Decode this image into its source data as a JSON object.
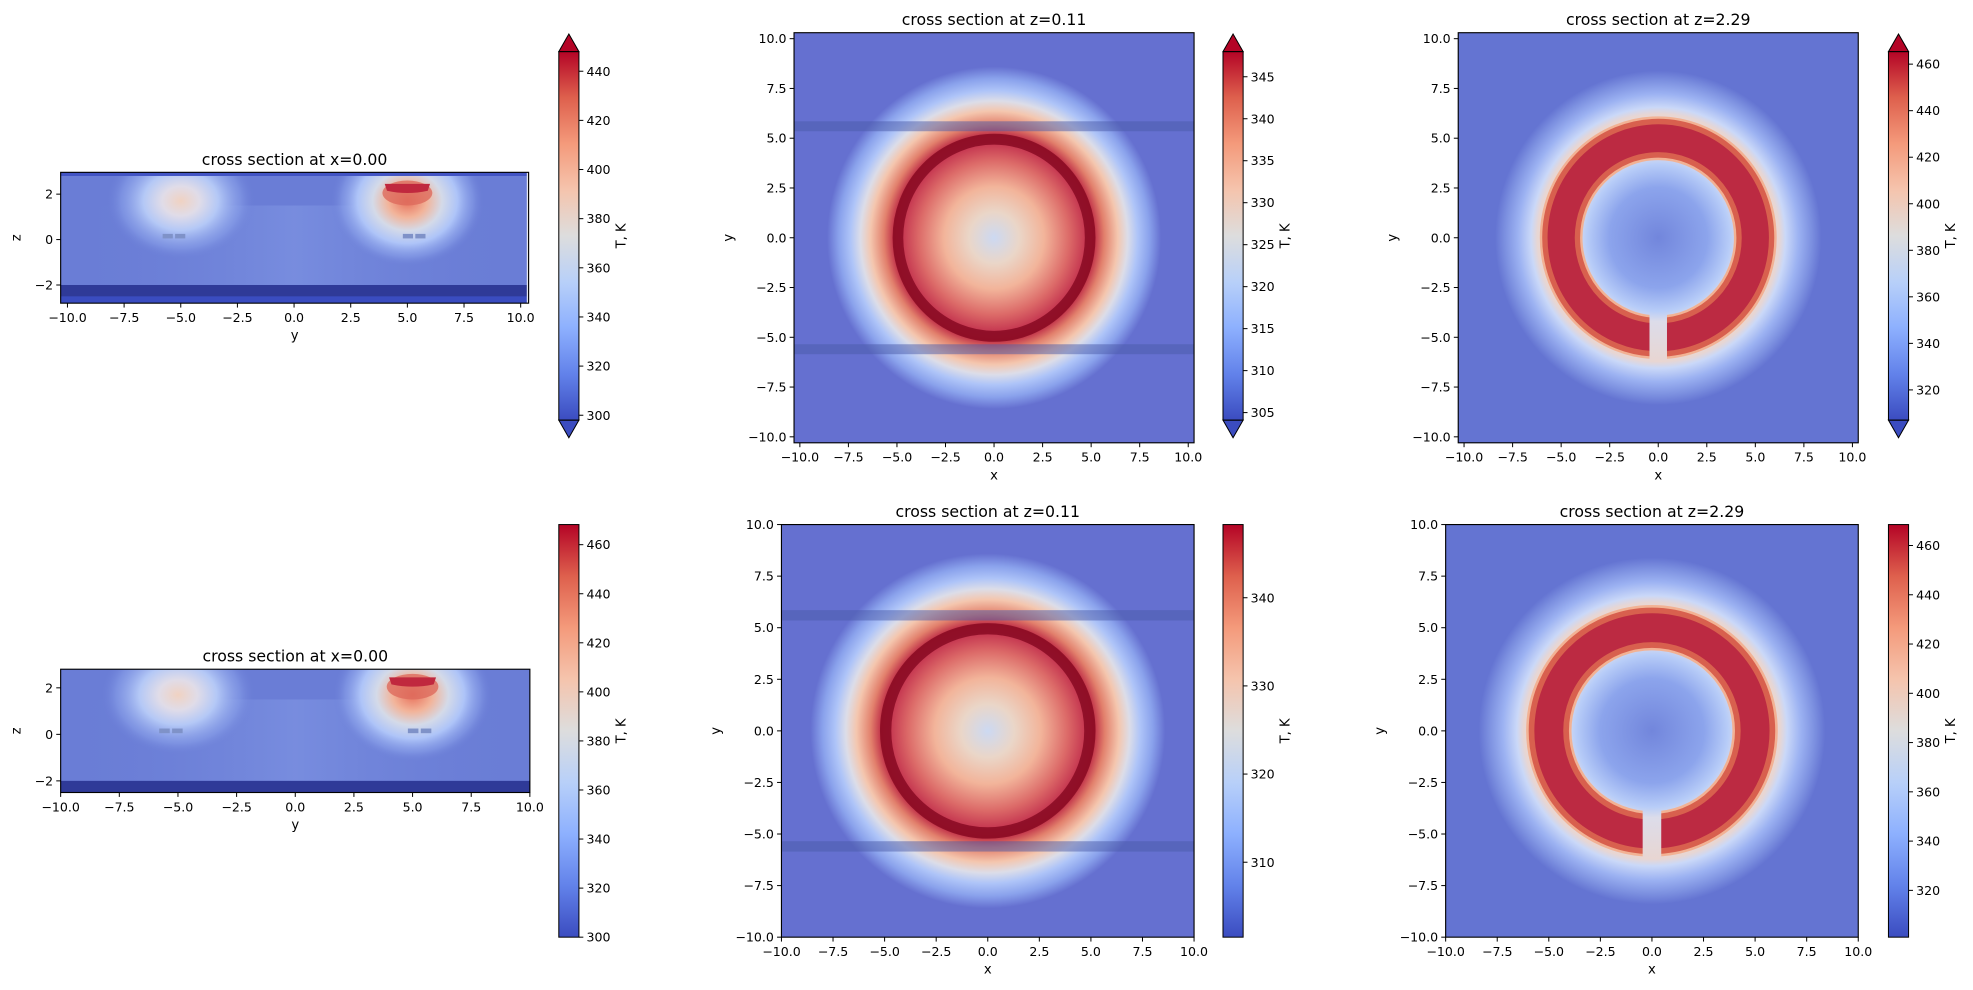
{
  "chart_data": [
    {
      "type": "heatmap",
      "title": "cross section at x=0.00",
      "xlabel": "y",
      "ylabel": "z",
      "xlim": [
        -10.3,
        10.35
      ],
      "ylim": [
        -2.8,
        2.96
      ],
      "xticks": [
        -10.0,
        -7.5,
        -5.0,
        -2.5,
        0.0,
        2.5,
        5.0,
        7.5,
        10.0
      ],
      "yticks": [
        -2,
        0,
        2
      ],
      "colorbar": {
        "label": "T, K",
        "range": [
          298,
          448
        ],
        "ticks": [
          300,
          320,
          340,
          360,
          380,
          400,
          420,
          440
        ],
        "extend": "both"
      }
    },
    {
      "type": "heatmap",
      "title": "cross section at z=0.11",
      "xlabel": "x",
      "ylabel": "y",
      "xlim": [
        -10.3,
        10.3
      ],
      "ylim": [
        -10.3,
        10.3
      ],
      "xticks": [
        -10.0,
        -7.5,
        -5.0,
        -2.5,
        0.0,
        2.5,
        5.0,
        7.5,
        10.0
      ],
      "yticks": [
        -10.0,
        -7.5,
        -5.0,
        -2.5,
        0.0,
        2.5,
        5.0,
        7.5,
        10.0
      ],
      "colorbar": {
        "label": "T, K",
        "range": [
          304.1,
          348
        ],
        "ticks": [
          305,
          310,
          315,
          320,
          325,
          330,
          335,
          340,
          345
        ],
        "extend": "both"
      }
    },
    {
      "type": "heatmap",
      "title": "cross section at z=2.29",
      "xlabel": "x",
      "ylabel": "y",
      "xlim": [
        -10.3,
        10.3
      ],
      "ylim": [
        -10.3,
        10.3
      ],
      "xticks": [
        -10.0,
        -7.5,
        -5.0,
        -2.5,
        0.0,
        2.5,
        5.0,
        7.5,
        10.0
      ],
      "yticks": [
        -10.0,
        -7.5,
        -5.0,
        -2.5,
        0.0,
        2.5,
        5.0,
        7.5,
        10.0
      ],
      "colorbar": {
        "label": "T, K",
        "range": [
          307,
          465.4
        ],
        "ticks": [
          320,
          340,
          360,
          380,
          400,
          420,
          440,
          460
        ],
        "extend": "both"
      }
    },
    {
      "type": "heatmap",
      "title": "cross section at x=0.00",
      "xlabel": "y",
      "ylabel": "z",
      "xlim": [
        -10,
        10
      ],
      "ylim": [
        -2.5,
        2.8
      ],
      "xticks": [
        -10.0,
        -7.5,
        -5.0,
        -2.5,
        0.0,
        2.5,
        5.0,
        7.5,
        10.0
      ],
      "yticks": [
        -2,
        0,
        2
      ],
      "colorbar": {
        "label": "T, K",
        "range": [
          300,
          468.2
        ],
        "ticks": [
          300,
          320,
          340,
          360,
          380,
          400,
          420,
          440,
          460
        ],
        "extend": "neither"
      }
    },
    {
      "type": "heatmap",
      "title": "cross section at z=0.11",
      "xlabel": "x",
      "ylabel": "y",
      "xlim": [
        -10,
        10
      ],
      "ylim": [
        -10,
        10
      ],
      "xticks": [
        -10.0,
        -7.5,
        -5.0,
        -2.5,
        0.0,
        2.5,
        5.0,
        7.5,
        10.0
      ],
      "yticks": [
        -10.0,
        -7.5,
        -5.0,
        -2.5,
        0.0,
        2.5,
        5.0,
        7.5,
        10.0
      ],
      "colorbar": {
        "label": "T, K",
        "range": [
          301.5,
          348.3
        ],
        "ticks": [
          310,
          320,
          330,
          340
        ],
        "extend": "neither"
      }
    },
    {
      "type": "heatmap",
      "title": "cross section at z=2.29",
      "xlabel": "x",
      "ylabel": "y",
      "xlim": [
        -10,
        10
      ],
      "ylim": [
        -10,
        10
      ],
      "xticks": [
        -10.0,
        -7.5,
        -5.0,
        -2.5,
        0.0,
        2.5,
        5.0,
        7.5,
        10.0
      ],
      "yticks": [
        -10.0,
        -7.5,
        -5.0,
        -2.5,
        0.0,
        2.5,
        5.0,
        7.5,
        10.0
      ],
      "colorbar": {
        "label": "T, K",
        "range": [
          301,
          468.5
        ],
        "ticks": [
          320,
          340,
          360,
          380,
          400,
          420,
          440,
          460
        ],
        "extend": "neither"
      }
    }
  ],
  "colormap": {
    "name": "coolwarm",
    "stops": [
      "#3b4cc0",
      "#6282ea",
      "#8db0fe",
      "#b8d0f9",
      "#dddddd",
      "#f5c4ad",
      "#f49a7b",
      "#de604d",
      "#b40426"
    ]
  }
}
